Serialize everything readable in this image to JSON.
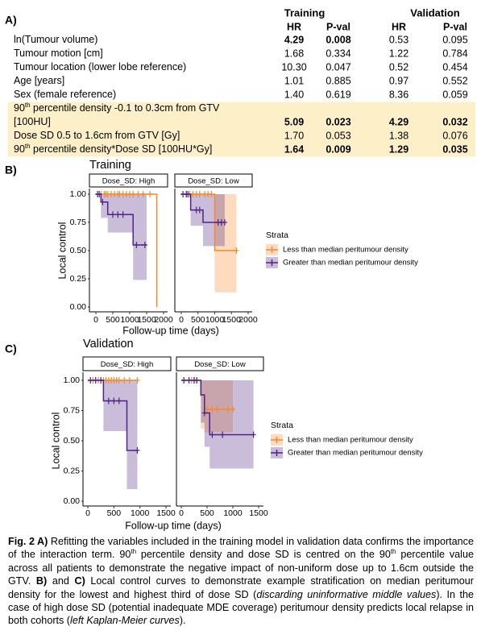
{
  "table": {
    "label": "A)",
    "groups": [
      "Training",
      "Validation"
    ],
    "columns": [
      "HR",
      "P-val",
      "HR",
      "P-val"
    ],
    "rows": [
      {
        "label": [
          [
            {
              "text": "ln(Tumour volume)"
            }
          ]
        ],
        "cells": [
          "4.29",
          "0.008",
          "0.53",
          "0.095"
        ],
        "bold": [
          true,
          true,
          false,
          false
        ],
        "highlight": false
      },
      {
        "label": [
          [
            {
              "text": "Tumour motion [cm]"
            }
          ]
        ],
        "cells": [
          "1.68",
          "0.334",
          "1.22",
          "0.784"
        ],
        "bold": [
          false,
          false,
          false,
          false
        ],
        "highlight": false
      },
      {
        "label": [
          [
            {
              "text": "Tumour location (lower lobe reference)"
            }
          ]
        ],
        "cells": [
          "10.30",
          "0.047",
          "0.52",
          "0.454"
        ],
        "bold": [
          false,
          false,
          false,
          false
        ],
        "highlight": false
      },
      {
        "label": [
          [
            {
              "text": "Age [years]"
            }
          ]
        ],
        "cells": [
          "1.01",
          "0.885",
          "0.97",
          "0.552"
        ],
        "bold": [
          false,
          false,
          false,
          false
        ],
        "highlight": false
      },
      {
        "label": [
          [
            {
              "text": "Sex (female reference)"
            }
          ]
        ],
        "cells": [
          "1.40",
          "0.619",
          "8.36",
          "0.059"
        ],
        "bold": [
          false,
          false,
          false,
          false
        ],
        "highlight": false
      },
      {
        "label": [
          [
            {
              "text": "90"
            },
            {
              "text": "th",
              "sup": true
            },
            {
              "text": " percentile density -0.1 to 0.3cm from GTV"
            }
          ],
          [
            {
              "text": "[100HU]"
            }
          ]
        ],
        "cells": [
          "5.09",
          "0.023",
          "4.29",
          "0.032"
        ],
        "bold": [
          true,
          true,
          true,
          true
        ],
        "highlight": true
      },
      {
        "label": [
          [
            {
              "text": "Dose SD 0.5 to 1.6cm from GTV [Gy]"
            }
          ]
        ],
        "cells": [
          "1.70",
          "0.053",
          "1.38",
          "0.076"
        ],
        "bold": [
          false,
          false,
          false,
          false
        ],
        "highlight": true
      },
      {
        "label": [
          [
            {
              "text": "90"
            },
            {
              "text": "th",
              "sup": true
            },
            {
              "text": " percentile density*Dose SD [100HU*Gy]"
            }
          ]
        ],
        "cells": [
          "1.64",
          "0.009",
          "1.29",
          "0.035"
        ],
        "bold": [
          true,
          true,
          true,
          true
        ],
        "highlight": true
      }
    ]
  },
  "panels": [
    {
      "label": "B)",
      "title": "Training",
      "ylabel": "Local control",
      "xlabel": "Follow-up time (days)",
      "xlim": [
        0,
        2000
      ],
      "xticks": [
        0,
        500,
        1000,
        1500,
        2000
      ],
      "ylim": [
        0,
        1
      ],
      "yticks": [
        {
          "value": 0,
          "label": "0.00"
        },
        {
          "value": 0.25,
          "label": "0.25"
        },
        {
          "value": 0.5,
          "label": "0.50"
        },
        {
          "value": 0.75,
          "label": "0.75"
        },
        {
          "value": 1,
          "label": "1.00"
        }
      ],
      "legend": {
        "title": "Strata",
        "names": [
          "Less than median peritumour density",
          "Greater than median peritumour density"
        ],
        "colors": [
          "#f5892b",
          "#4f2385"
        ]
      },
      "facets": [
        {
          "strip": "Dose_SD: High",
          "series": [
            {
              "x": [
                0,
                1800
              ],
              "values": [
                1,
                0
              ],
              "end": 1800,
              "censor": [
                150,
                250,
                300,
                350,
                450,
                550,
                650,
                700,
                800,
                900,
                1000,
                1100,
                1250,
                1400,
                1600
              ]
            },
            {
              "x": [
                0,
                150,
                350,
                1100
              ],
              "values": [
                1,
                0.93,
                0.82,
                0.55
              ],
              "end": 1500,
              "lower": [
                1,
                0.79,
                0.66,
                0.24
              ],
              "upper": [
                1,
                1,
                1,
                1
              ],
              "censor": [
                50,
                100,
                200,
                500,
                650,
                800,
                1200,
                1450
              ]
            }
          ]
        },
        {
          "strip": "Dose_SD: Low",
          "series": [
            {
              "x": [
                0,
                1000
              ],
              "values": [
                1,
                0.5
              ],
              "end": 1650,
              "lower": [
                1,
                0.13
              ],
              "upper": [
                1,
                1
              ],
              "censor": [
                150,
                250,
                350,
                450,
                550,
                700,
                800,
                900,
                1650
              ]
            },
            {
              "x": [
                0,
                280,
                650
              ],
              "values": [
                1,
                0.86,
                0.75
              ],
              "end": 1300,
              "lower": [
                1,
                0.72,
                0.54
              ],
              "upper": [
                1,
                1,
                1
              ],
              "censor": [
                50,
                150,
                200,
                450,
                550,
                1100,
                1200,
                1300
              ]
            }
          ]
        }
      ]
    },
    {
      "label": "C)",
      "title": "Validation",
      "ylabel": "Local control",
      "xlabel": "Follow-up time (days)",
      "xlim": [
        0,
        1500
      ],
      "xticks": [
        0,
        500,
        1000,
        1500
      ],
      "ylim": [
        0,
        1
      ],
      "yticks": [
        {
          "value": 0,
          "label": "0.00"
        },
        {
          "value": 0.25,
          "label": "0.25"
        },
        {
          "value": 0.5,
          "label": "0.50"
        },
        {
          "value": 0.75,
          "label": "0.75"
        },
        {
          "value": 1,
          "label": "1.00"
        }
      ],
      "legend": {
        "title": "Strata",
        "names": [
          "Less than median peritumour density",
          "Greater than median peritumour density"
        ],
        "colors": [
          "#f5892b",
          "#4f2385"
        ]
      },
      "facets": [
        {
          "strip": "Dose_SD: High",
          "series": [
            {
              "x": [
                0
              ],
              "values": [
                1
              ],
              "end": 950,
              "censor": [
                100,
                200,
                300,
                350,
                400,
                450,
                500,
                550,
                600,
                700,
                800,
                950
              ]
            },
            {
              "x": [
                0,
                300,
                750
              ],
              "values": [
                1,
                0.83,
                0.42
              ],
              "end": 950,
              "lower": [
                1,
                0.58,
                0.1
              ],
              "upper": [
                1,
                1,
                1
              ],
              "censor": [
                50,
                150,
                250,
                400,
                500,
                600,
                950
              ]
            }
          ]
        },
        {
          "strip": "Dose_SD: Low",
          "series": [
            {
              "x": [
                0,
                380,
                450
              ],
              "values": [
                1,
                0.875,
                0.76
              ],
              "end": 1000,
              "lower": [
                1,
                0.6,
                0.57
              ],
              "upper": [
                1,
                1,
                1
              ],
              "censor": [
                200,
                250,
                300,
                500,
                600,
                700,
                900,
                1000
              ]
            },
            {
              "x": [
                0,
                380,
                450,
                550
              ],
              "values": [
                1,
                0.88,
                0.73,
                0.55
              ],
              "end": 1400,
              "lower": [
                1,
                0.65,
                0.45,
                0.27
              ],
              "upper": [
                1,
                1,
                1,
                1
              ],
              "censor": [
                50,
                150,
                250,
                300,
                450,
                600,
                800,
                1400
              ]
            }
          ]
        }
      ]
    }
  ],
  "caption": [
    {
      "text": "Fig. 2 A)",
      "style": "b"
    },
    {
      "text": " Refitting the variables included in the training model in validation data confirms the importance of the interaction term. 90"
    },
    {
      "text": "th",
      "style": "sup"
    },
    {
      "text": " percentile density and dose SD is centred on the 90"
    },
    {
      "text": "th",
      "style": "sup"
    },
    {
      "text": " percentile value across all patients to demonstrate the negative impact of non-uniform dose up to 1.6cm outside the GTV. "
    },
    {
      "text": "B)",
      "style": "b"
    },
    {
      "text": " and "
    },
    {
      "text": "C)",
      "style": "b"
    },
    {
      "text": " Local control curves to demonstrate example stratification on median peritumour density for the lowest and highest third of dose SD ("
    },
    {
      "text": "discarding uninformative middle values",
      "style": "i"
    },
    {
      "text": "). In the case of high dose SD (potential inadequate MDE coverage) peritumour density predicts local relapse in both cohorts ("
    },
    {
      "text": "left Kaplan-Meier curves",
      "style": "i"
    },
    {
      "text": ")."
    }
  ]
}
